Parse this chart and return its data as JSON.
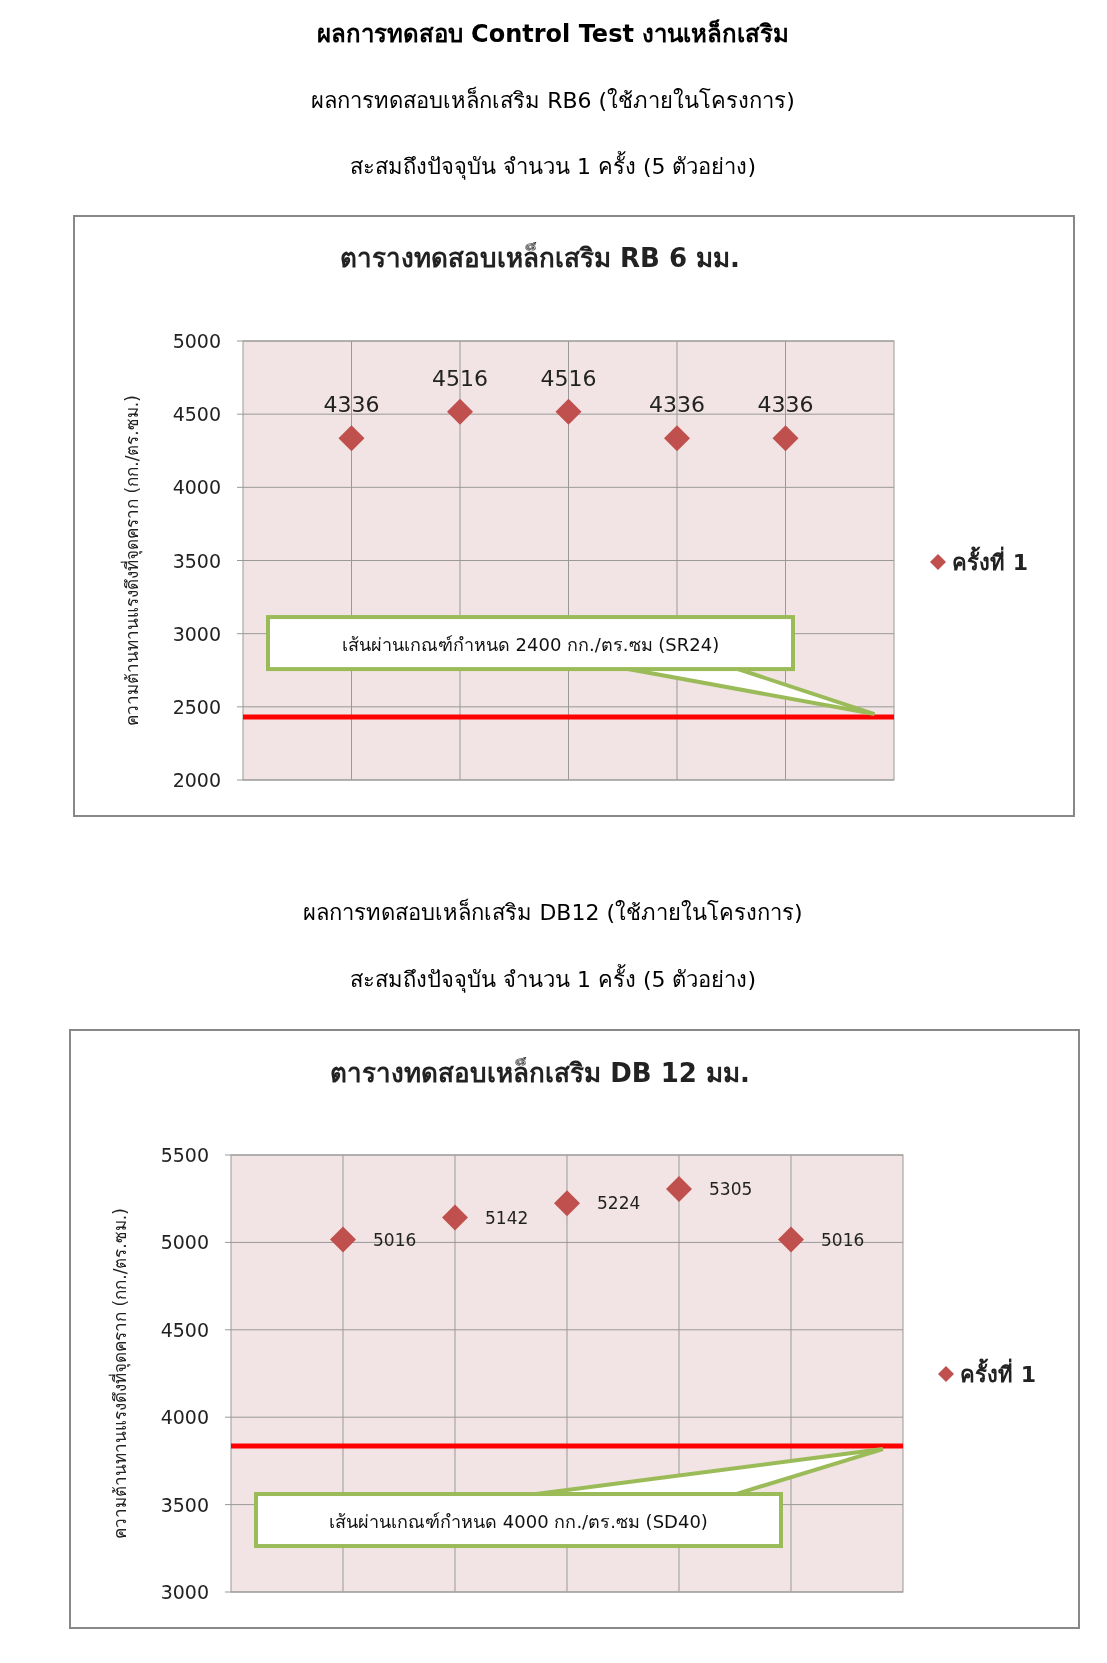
{
  "chart_data": [
    {
      "type": "scatter",
      "title": "ตารางทดสอบเหล็กเสริม RB 6 มม.",
      "ylabel": "ความต้านทานแรงดึงที่จุดคราก (กก./ตร.ซม.)",
      "annotations": [
        "ผลการทดสอบ Control Test งานเหล็กเสริม",
        "ผลการทดสอบเหล็กเสริม RB6 (ใช้ภายในโครงการ)",
        "สะสมถึงปัจจุบัน จำนวน 1 ครั้ง (5 ตัวอย่าง)"
      ],
      "categories": [
        null,
        null,
        null,
        null,
        null
      ],
      "series": [
        {
          "name": "ครั้งที่ 1",
          "color": "#c0504d",
          "values": [
            4336,
            4516,
            4516,
            4336,
            4336
          ]
        }
      ],
      "ylim": [
        2000,
        5000
      ],
      "yticks": [
        2000,
        2500,
        3000,
        3500,
        4000,
        4500,
        5000
      ],
      "ref_lines": [
        {
          "axis": "y",
          "value": 2430,
          "label": "เส้นผ่านเกณฑ์กำหนด 2400 กก./ตร.ซม (SR24)",
          "color": "#ff0000"
        }
      ],
      "grid": true,
      "legend": "right",
      "marker": "diamond",
      "data_labels": true
    },
    {
      "type": "scatter",
      "title": "ตารางทดสอบเหล็กเสริม DB 12 มม.",
      "ylabel": "ความต้านทานแรงดึงที่จุดคราก (กก./ตร.ซม.)",
      "annotations": [
        "ผลการทดสอบเหล็กเสริม DB12 (ใช้ภายในโครงการ)",
        "สะสมถึงปัจจุบัน จำนวน 1 ครั้ง (5 ตัวอย่าง)"
      ],
      "categories": [
        null,
        null,
        null,
        null,
        null
      ],
      "series": [
        {
          "name": "ครั้งที่ 1",
          "color": "#c0504d",
          "values": [
            5016,
            5142,
            5224,
            5305,
            5016
          ]
        }
      ],
      "ylim": [
        3000,
        5500
      ],
      "yticks": [
        3000,
        3500,
        4000,
        4500,
        5000,
        5500
      ],
      "ref_lines": [
        {
          "axis": "y",
          "value": 3835,
          "label": "เส้นผ่านเกณฑ์กำหนด 4000 กก./ตร.ซม (SD40)",
          "color": "#ff0000"
        }
      ],
      "grid": true,
      "legend": "right",
      "marker": "diamond",
      "data_labels": true
    }
  ]
}
